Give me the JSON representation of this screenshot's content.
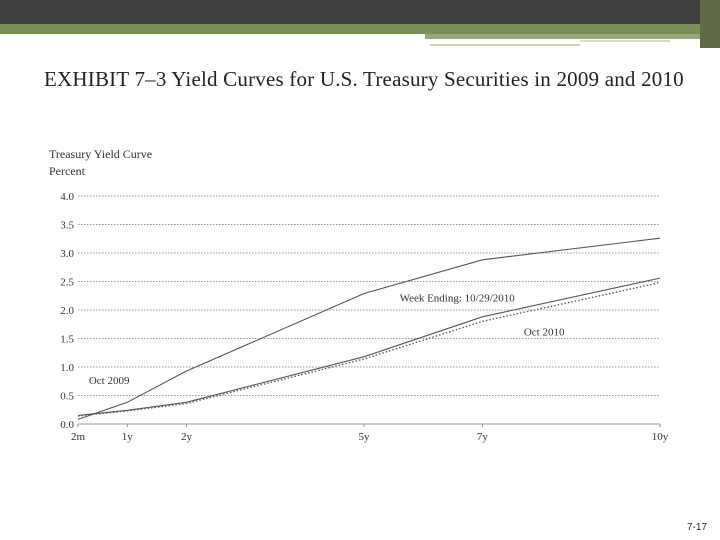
{
  "slide": {
    "title": "EXHIBIT 7–3 Yield Curves for U.S. Treasury Securities in 2009 and 2010",
    "page_number": "7-17"
  },
  "chart_data": {
    "type": "line",
    "title": "Treasury Yield Curve",
    "ylabel": "Percent",
    "xlabel": "",
    "x_ticks": [
      "2m",
      "1y",
      "2y",
      "5y",
      "7y",
      "10y"
    ],
    "x_values": [
      0.167,
      1,
      2,
      5,
      7,
      10
    ],
    "y_ticks": [
      "0.0",
      "0.5",
      "1.0",
      "1.5",
      "2.0",
      "2.5",
      "3.0",
      "3.5",
      "4.0"
    ],
    "ylim": [
      0,
      4
    ],
    "grid": "horizontal-dotted",
    "series": [
      {
        "name": "Oct 2009",
        "style": "solid",
        "x": [
          0.167,
          1,
          2,
          5,
          7,
          10
        ],
        "y": [
          0.08,
          0.38,
          0.93,
          2.29,
          2.88,
          3.26
        ]
      },
      {
        "name": "Week Ending: 10/29/2010",
        "style": "solid",
        "x": [
          0.167,
          1,
          2,
          5,
          7,
          10
        ],
        "y": [
          0.15,
          0.24,
          0.38,
          1.18,
          1.88,
          2.56
        ]
      },
      {
        "name": "Oct 2010",
        "style": "dotted",
        "x": [
          0.167,
          1,
          2,
          5,
          7,
          10
        ],
        "y": [
          0.14,
          0.23,
          0.36,
          1.14,
          1.8,
          2.48
        ]
      }
    ],
    "colors": {
      "line": "#555555",
      "grid": "#777777"
    }
  }
}
